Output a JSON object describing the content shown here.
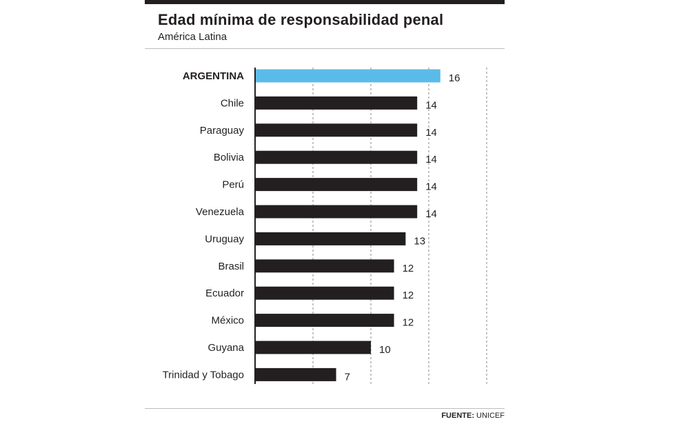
{
  "title": "Edad mínima de responsabilidad penal",
  "subtitle": "América Latina",
  "source": {
    "label": "FUENTE:",
    "value": "UNICEF"
  },
  "colors": {
    "highlight": "#5bbbe8",
    "bar": "#231f20",
    "grid": "#8a8a8a",
    "text": "#231f20"
  },
  "chart_data": {
    "type": "bar",
    "orientation": "horizontal",
    "title": "Edad mínima de responsabilidad penal",
    "subtitle": "América Latina",
    "categories": [
      "ARGENTINA",
      "Chile",
      "Paraguay",
      "Bolivia",
      "Perú",
      "Venezuela",
      "Uruguay",
      "Brasil",
      "Ecuador",
      "México",
      "Guyana",
      "Trinidad y Tobago"
    ],
    "values": [
      16,
      14,
      14,
      14,
      14,
      14,
      13,
      12,
      12,
      12,
      10,
      7
    ],
    "highlight": "ARGENTINA",
    "xlim": [
      0,
      20
    ],
    "grid": true,
    "gridlines": [
      5,
      10,
      15,
      20
    ],
    "data_labels": true,
    "xlabel": "",
    "ylabel": ""
  }
}
